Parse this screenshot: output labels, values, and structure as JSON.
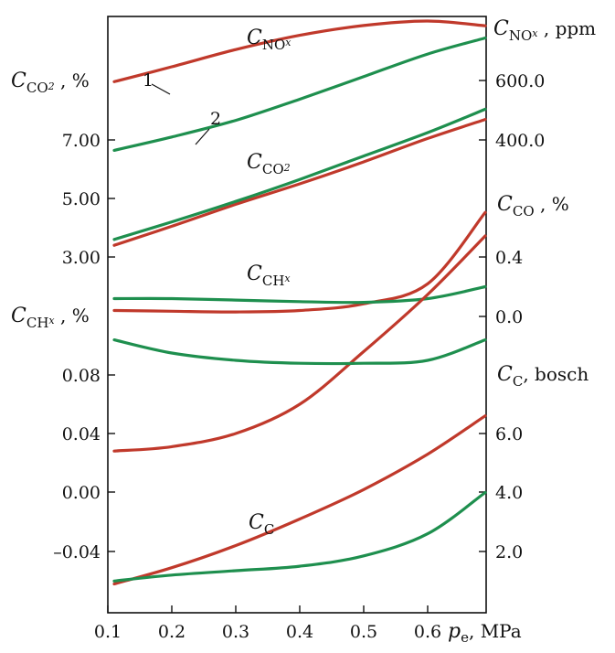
{
  "chart_data": {
    "type": "line",
    "x_axis": {
      "label": "p",
      "label_sub": "e",
      "label_suffix": ", MPa",
      "range": [
        0.1,
        0.7
      ],
      "ticks": [
        "0.1",
        "0.2",
        "0.3",
        "0.4",
        "0.5",
        "0.6"
      ]
    },
    "colors": {
      "series_1": "#c0392b",
      "series_2": "#1e8f4e",
      "frame": "#111111"
    },
    "curve_markers": [
      "1",
      "2"
    ],
    "left_axes": [
      {
        "name": "C",
        "sub": "CO",
        "sub2": "2",
        "suffix": " , %",
        "ticks": [
          "7.00",
          "5.00",
          "3.00"
        ]
      },
      {
        "name": "C",
        "sub": "CH",
        "subsub": "x",
        "suffix": " , %",
        "ticks": [
          "0.08",
          "0.04",
          "0.00",
          "–0.04"
        ]
      }
    ],
    "right_axes": [
      {
        "name": "C",
        "sub": "NO",
        "subsub": "x",
        "suffix": " , ppm",
        "ticks": [
          "600.0",
          "400.0"
        ]
      },
      {
        "name": "C",
        "sub": "CO",
        "suffix": " , %",
        "ticks": [
          "0.4",
          "0.0"
        ]
      },
      {
        "name": "C",
        "sub": "C",
        "suffix": ", bosch",
        "ticks": [
          "6.0",
          "4.0",
          "2.0"
        ]
      }
    ],
    "curve_labels": [
      {
        "name": "C",
        "sub": "NO",
        "subsub": "x"
      },
      {
        "name": "C",
        "sub": "CO",
        "sub2": "2"
      },
      {
        "name": "C",
        "sub": "CH",
        "subsub": "x"
      },
      {
        "name": "C",
        "sub": "C"
      }
    ],
    "groups": [
      {
        "quantity": "NOx",
        "unit_axis": "ppm",
        "x": [
          0.11,
          0.2,
          0.3,
          0.4,
          0.5,
          0.6,
          0.69
        ],
        "series": [
          {
            "id": "1",
            "values": [
              596,
              646,
              704,
              752,
              785,
              800,
              784
            ]
          },
          {
            "id": "2",
            "values": [
              365,
              410,
              466,
              537,
              613,
              689,
              743
            ]
          }
        ]
      },
      {
        "quantity": "CO2",
        "unit_axis": "%",
        "x": [
          0.11,
          0.2,
          0.3,
          0.4,
          0.5,
          0.6,
          0.69
        ],
        "series": [
          {
            "id": "1",
            "values": [
              3.4,
              4.05,
              4.8,
              5.5,
              6.25,
              7.05,
              7.7
            ]
          },
          {
            "id": "2",
            "values": [
              3.6,
              4.2,
              4.9,
              5.65,
              6.45,
              7.25,
              8.05
            ]
          }
        ]
      },
      {
        "quantity": "CO",
        "unit_axis": "%",
        "x": [
          0.11,
          0.2,
          0.3,
          0.4,
          0.5,
          0.6,
          0.69
        ],
        "series": [
          {
            "id": "1",
            "values": [
              0.04,
              0.035,
              0.03,
              0.04,
              0.085,
              0.22,
              0.7
            ]
          },
          {
            "id": "2",
            "values": [
              0.12,
              0.12,
              0.11,
              0.1,
              0.095,
              0.12,
              0.2
            ]
          }
        ]
      },
      {
        "quantity": "CHx",
        "unit_axis": "%",
        "x": [
          0.11,
          0.2,
          0.3,
          0.4,
          0.5,
          0.6,
          0.69
        ],
        "series": [
          {
            "id": "1",
            "values": [
              0.028,
              0.031,
              0.04,
              0.06,
              0.096,
              0.135,
              0.175
            ]
          },
          {
            "id": "2",
            "values": [
              0.104,
              0.095,
              0.09,
              0.088,
              0.088,
              0.09,
              0.104
            ]
          }
        ]
      },
      {
        "quantity": "C",
        "unit_axis": "bosch",
        "x": [
          0.11,
          0.2,
          0.3,
          0.4,
          0.5,
          0.6,
          0.69
        ],
        "series": [
          {
            "id": "1",
            "values": [
              0.9,
              1.45,
              2.2,
              3.1,
              4.1,
              5.3,
              6.6
            ]
          },
          {
            "id": "2",
            "values": [
              1.0,
              1.2,
              1.35,
              1.5,
              1.85,
              2.6,
              4.0
            ]
          }
        ]
      }
    ]
  }
}
